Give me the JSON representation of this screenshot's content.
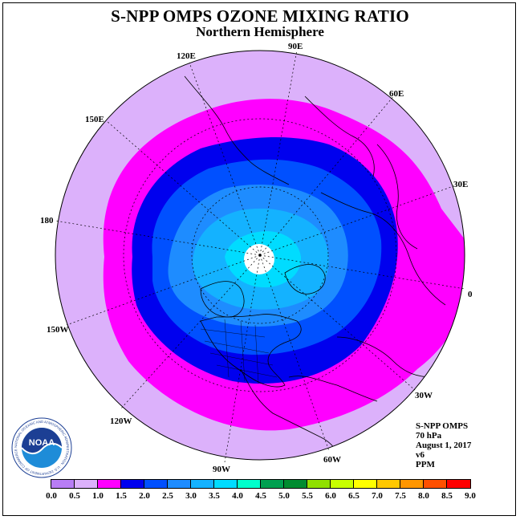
{
  "title": "S-NPP OMPS OZONE MIXING RATIO",
  "subtitle": "Northern Hemisphere",
  "longitude_labels": [
    {
      "id": "90E",
      "text": "90E"
    },
    {
      "id": "60E",
      "text": "60E"
    },
    {
      "id": "30E",
      "text": "30E"
    },
    {
      "id": "0",
      "text": "0"
    },
    {
      "id": "30W",
      "text": "30W"
    },
    {
      "id": "60W",
      "text": "60W"
    },
    {
      "id": "90W",
      "text": "90W"
    },
    {
      "id": "120W",
      "text": "120W"
    },
    {
      "id": "150W",
      "text": "150W"
    },
    {
      "id": "180",
      "text": "180"
    },
    {
      "id": "150E",
      "text": "150E"
    },
    {
      "id": "120E",
      "text": "120E"
    }
  ],
  "info": {
    "instrument": "S-NPP OMPS",
    "level": "70 hPa",
    "date": "August 1, 2017",
    "version": "v6",
    "units": "PPM"
  },
  "logo": {
    "text": "NOAA",
    "ring_text": "NATIONAL OCEANIC AND ATMOSPHERIC ADMINISTRATION · U.S. DEPARTMENT OF COMMERCE"
  },
  "colorbar": {
    "ticks": [
      "0.0",
      "0.5",
      "1.0",
      "1.5",
      "2.0",
      "2.5",
      "3.0",
      "3.5",
      "4.0",
      "4.5",
      "5.0",
      "5.5",
      "6.0",
      "6.5",
      "7.0",
      "7.5",
      "8.0",
      "8.5",
      "9.0"
    ],
    "colors": [
      "#b87df5",
      "#dcb1fb",
      "#ff00ff",
      "#0000ee",
      "#0050ff",
      "#1e8cff",
      "#14b2ff",
      "#00dcff",
      "#00ffcc",
      "#00a050",
      "#008c30",
      "#90e000",
      "#c8ff00",
      "#ffff00",
      "#ffc800",
      "#ff9600",
      "#ff5000",
      "#ff0000",
      "#8c5030"
    ]
  },
  "map": {
    "projection": "polar stereographic",
    "hemisphere": "north",
    "field_levels_ppm": [
      0.5,
      1.0,
      1.5,
      2.0,
      2.5,
      3.0,
      3.5
    ]
  }
}
